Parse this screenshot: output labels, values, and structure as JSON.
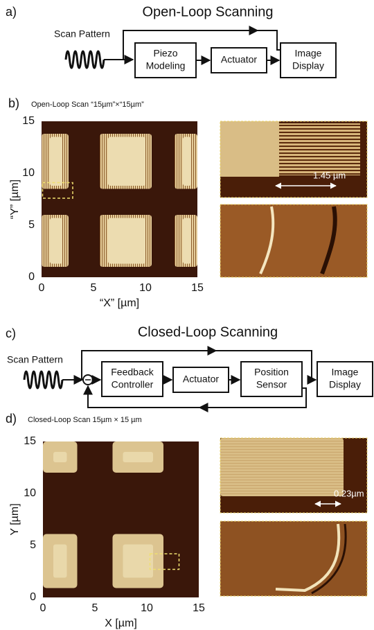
{
  "panels": {
    "a": {
      "label": "a)",
      "title": "Open-Loop Scanning",
      "input": "Scan Pattern",
      "blocks": [
        [
          "Piezo",
          "Modeling"
        ],
        [
          "Actuator"
        ],
        [
          "Image",
          "Display"
        ]
      ]
    },
    "b": {
      "label": "b)",
      "caption": "Open-Loop Scan “15µm”×“15µm”",
      "xlabel": "“X” [µm]",
      "ylabel": "“Y” [µm]",
      "xticks": [
        0,
        5,
        10,
        15
      ],
      "yticks": [
        0,
        5,
        10,
        15
      ],
      "measurement": "1.45 µm"
    },
    "c": {
      "label": "c)",
      "title": "Closed-Loop Scanning",
      "input": "Scan Pattern",
      "blocks": [
        [
          "Feedback",
          "Controller"
        ],
        [
          "Actuator"
        ],
        [
          "Position",
          "Sensor"
        ],
        [
          "Image",
          "Display"
        ]
      ]
    },
    "d": {
      "label": "d)",
      "caption": "Closed-Loop Scan 15µm × 15 µm",
      "xlabel": "X [µm]",
      "ylabel": "Y [µm]",
      "xticks": [
        0,
        5,
        10,
        15
      ],
      "yticks": [
        0,
        5,
        10,
        15
      ],
      "measurement": "0.23µm"
    }
  }
}
